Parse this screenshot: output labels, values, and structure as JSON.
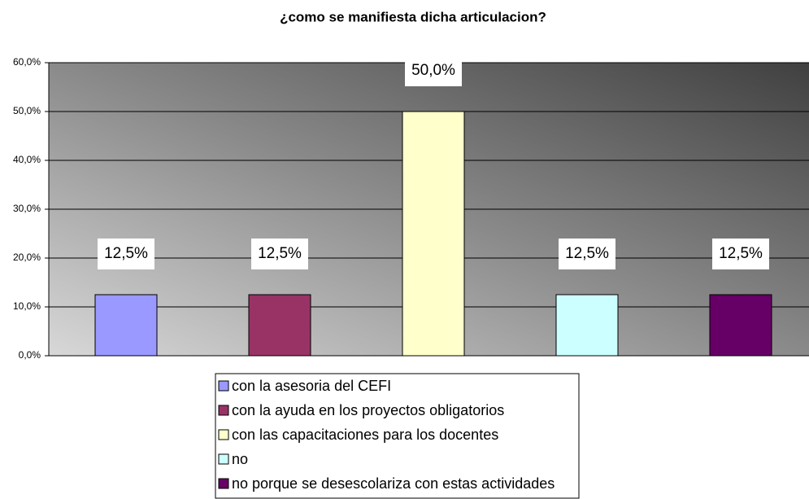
{
  "chart_data": {
    "type": "bar",
    "title": "¿como se manifiesta dicha articulacion?",
    "series": [
      {
        "name": "con la asesoria del CEFI",
        "color": "#9999ff",
        "values": [
          12.5
        ],
        "value_labels": [
          "12,5%"
        ]
      },
      {
        "name": "con la ayuda en los proyectos obligatorios",
        "color": "#993366",
        "values": [
          12.5
        ],
        "value_labels": [
          "12,5%"
        ]
      },
      {
        "name": "con las capacitaciones para los docentes",
        "color": "#ffffcc",
        "values": [
          50
        ],
        "value_labels": [
          "50,0%"
        ]
      },
      {
        "name": "no",
        "color": "#ccffff",
        "values": [
          12.5
        ],
        "value_labels": [
          "12,5%"
        ]
      },
      {
        "name": "no porque se desescolariza con estas actividades",
        "color": "#660066",
        "values": [
          12.5
        ],
        "value_labels": [
          "12,5%"
        ]
      }
    ],
    "ylim": [
      0,
      60
    ],
    "yticks": [
      {
        "value": 0,
        "label": "0,0%"
      },
      {
        "value": 10,
        "label": "10,0%"
      },
      {
        "value": 20,
        "label": "20,0%"
      },
      {
        "value": 30,
        "label": "30,0%"
      },
      {
        "value": 40,
        "label": "40,0%"
      },
      {
        "value": 50,
        "label": "50,0%"
      },
      {
        "value": 60,
        "label": "60,0%"
      }
    ],
    "grid": true,
    "legend": "bottom"
  }
}
